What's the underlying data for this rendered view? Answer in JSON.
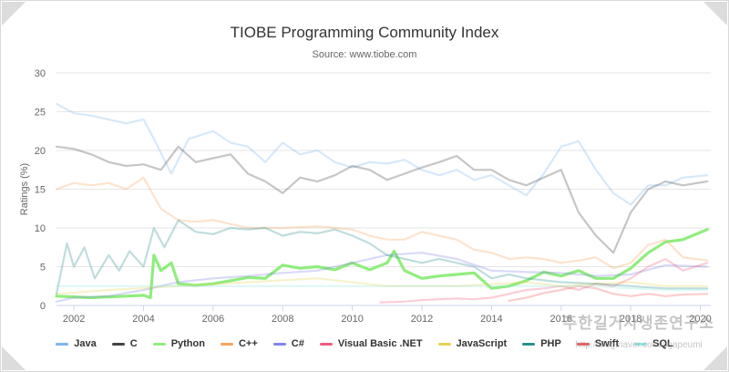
{
  "chart_data": {
    "type": "line",
    "title": "TIOBE Programming Community Index",
    "subtitle": "Source: www.tiobe.com",
    "xlabel": "",
    "ylabel": "Ratings (%)",
    "xlim": [
      2001.5,
      2020.3
    ],
    "ylim": [
      0,
      30
    ],
    "x_ticks": [
      2002,
      2004,
      2006,
      2008,
      2010,
      2012,
      2014,
      2016,
      2018,
      2020
    ],
    "y_ticks": [
      0,
      5,
      10,
      15,
      20,
      25,
      30
    ],
    "grid": "horizontal",
    "legend_position": "bottom",
    "series": [
      {
        "name": "Java",
        "color": "#7cb5ec",
        "emphasis": false,
        "x": [
          2001.5,
          2002,
          2002.5,
          2003,
          2003.5,
          2004,
          2004.3,
          2004.8,
          2005.3,
          2006,
          2006.5,
          2007,
          2007.5,
          2008,
          2008.5,
          2009,
          2009.5,
          2010,
          2010.5,
          2011,
          2011.5,
          2012,
          2012.5,
          2013,
          2013.5,
          2014,
          2014.5,
          2015,
          2015.5,
          2016,
          2016.5,
          2017,
          2017.5,
          2018,
          2018.5,
          2019,
          2019.5,
          2020.2
        ],
        "y": [
          26,
          24.8,
          24.5,
          24,
          23.5,
          24,
          21.5,
          17,
          21.5,
          22.5,
          21,
          20.5,
          18.5,
          21,
          19.5,
          20,
          18.5,
          17.8,
          18.5,
          18.3,
          18.8,
          17.5,
          16.8,
          17.5,
          16.2,
          16.8,
          15.5,
          14.2,
          17,
          20.5,
          21.2,
          17.5,
          14.5,
          13,
          15.5,
          15.5,
          16.5,
          16.8
        ]
      },
      {
        "name": "C",
        "color": "#434348",
        "emphasis": false,
        "x": [
          2001.5,
          2002,
          2002.5,
          2003,
          2003.5,
          2004,
          2004.5,
          2005,
          2005.5,
          2006,
          2006.5,
          2007,
          2007.5,
          2008,
          2008.5,
          2009,
          2009.5,
          2010,
          2010.5,
          2011,
          2011.5,
          2012,
          2012.5,
          2013,
          2013.5,
          2014,
          2014.5,
          2015,
          2015.5,
          2016,
          2016.5,
          2017,
          2017.5,
          2018,
          2018.5,
          2019,
          2019.5,
          2020.2
        ],
        "y": [
          20.5,
          20.2,
          19.5,
          18.5,
          18,
          18.2,
          17.5,
          20.5,
          18.5,
          19,
          19.5,
          17,
          16,
          14.5,
          16.5,
          16,
          16.8,
          18,
          17.5,
          16.2,
          17,
          17.8,
          18.5,
          19.3,
          17.5,
          17.5,
          16.2,
          15.5,
          16.5,
          17.5,
          12,
          9,
          6.8,
          12,
          15,
          16,
          15.5,
          16
        ]
      },
      {
        "name": "Python",
        "color": "#90ed7d",
        "emphasis": true,
        "x": [
          2001.5,
          2002,
          2002.5,
          2003,
          2003.5,
          2004,
          2004.2,
          2004.3,
          2004.5,
          2004.8,
          2005,
          2005.5,
          2006,
          2006.5,
          2007,
          2007.5,
          2008,
          2008.5,
          2009,
          2009.5,
          2010,
          2010.5,
          2011,
          2011.2,
          2011.5,
          2012,
          2012.5,
          2013,
          2013.5,
          2014,
          2014.5,
          2015,
          2015.5,
          2016,
          2016.5,
          2017,
          2017.5,
          2018,
          2018.5,
          2019,
          2019.5,
          2020.2
        ],
        "y": [
          1.2,
          1.1,
          1.0,
          1.1,
          1.2,
          1.3,
          1.0,
          6.5,
          4.5,
          5.5,
          2.8,
          2.6,
          2.8,
          3.2,
          3.6,
          3.5,
          5.2,
          4.8,
          5.0,
          4.6,
          5.5,
          4.6,
          5.5,
          7.0,
          4.5,
          3.5,
          3.8,
          4.0,
          4.2,
          2.2,
          2.5,
          3.2,
          4.3,
          3.8,
          4.5,
          3.5,
          3.5,
          4.8,
          6.8,
          8.2,
          8.5,
          9.8
        ]
      },
      {
        "name": "C++",
        "color": "#f7a35c",
        "emphasis": false,
        "x": [
          2001.5,
          2002,
          2002.5,
          2003,
          2003.5,
          2004,
          2004.5,
          2005,
          2005.5,
          2006,
          2006.5,
          2007,
          2008,
          2009,
          2010,
          2010.5,
          2011,
          2011.5,
          2012,
          2012.5,
          2013,
          2013.5,
          2014,
          2014.5,
          2015,
          2015.5,
          2016,
          2016.5,
          2017,
          2017.5,
          2018,
          2018.5,
          2019,
          2019.5,
          2020.2
        ],
        "y": [
          15,
          15.8,
          15.5,
          15.8,
          15,
          16.5,
          12.5,
          11,
          10.8,
          11,
          10.5,
          10,
          10,
          10.2,
          9.8,
          9,
          8.5,
          8.5,
          9.5,
          9,
          8.5,
          7.2,
          6.8,
          6,
          6.2,
          6,
          5.5,
          5.8,
          6.2,
          4.8,
          5.5,
          7.8,
          8.5,
          6.2,
          5.8
        ]
      },
      {
        "name": "C#",
        "color": "#8085e9",
        "emphasis": false,
        "x": [
          2001.5,
          2002,
          2003,
          2004,
          2005,
          2006,
          2007,
          2008,
          2009,
          2010,
          2011,
          2012,
          2013,
          2014,
          2015,
          2016,
          2017,
          2018,
          2019,
          2020.2
        ],
        "y": [
          0.5,
          1,
          1.2,
          2,
          3,
          3.5,
          3.8,
          4.2,
          4.5,
          5.5,
          6.5,
          6.8,
          6,
          4.5,
          4.3,
          4.2,
          3.8,
          4,
          5.2,
          5
        ]
      },
      {
        "name": "Visual Basic .NET",
        "color": "#f15c80",
        "emphasis": false,
        "x": [
          2010.8,
          2011.5,
          2012,
          2012.5,
          2013,
          2013.5,
          2014,
          2014.5,
          2015,
          2015.5,
          2016,
          2016.5,
          2017,
          2017.5,
          2018,
          2018.5,
          2019,
          2019.5,
          2020.2
        ],
        "y": [
          0.4,
          0.5,
          0.7,
          0.8,
          0.9,
          0.8,
          1.0,
          1.5,
          2.0,
          2.2,
          2.5,
          2.0,
          2.8,
          2.5,
          3.5,
          5.0,
          6.0,
          4.5,
          5.5
        ]
      },
      {
        "name": "JavaScript",
        "color": "#e4d354",
        "emphasis": false,
        "x": [
          2001.5,
          2003,
          2005,
          2007,
          2009,
          2011,
          2013,
          2015,
          2016,
          2017,
          2018,
          2019,
          2020.2
        ],
        "y": [
          1.5,
          2,
          2.5,
          3,
          3.5,
          2.5,
          2.5,
          3,
          2.5,
          2.8,
          3,
          2.5,
          2.5
        ]
      },
      {
        "name": "PHP",
        "color": "#2b908f",
        "emphasis": false,
        "x": [
          2001.5,
          2001.8,
          2002,
          2002.3,
          2002.6,
          2003,
          2003.3,
          2003.6,
          2004,
          2004.3,
          2004.6,
          2005,
          2005.5,
          2006,
          2006.5,
          2007,
          2007.5,
          2008,
          2008.5,
          2009,
          2009.5,
          2010,
          2010.5,
          2011,
          2011.5,
          2012,
          2012.5,
          2013,
          2013.5,
          2014,
          2014.5,
          2015,
          2016,
          2017,
          2018,
          2019,
          2020.2
        ],
        "y": [
          1.5,
          8,
          5,
          7.5,
          3.5,
          6.5,
          4.5,
          7,
          5,
          10,
          7.5,
          11,
          9.5,
          9.2,
          10,
          9.8,
          10,
          9,
          9.5,
          9.3,
          9.8,
          9,
          8,
          6.5,
          6,
          5.5,
          6,
          5.5,
          5,
          3.5,
          4,
          3.5,
          3,
          2.8,
          2.5,
          2.2,
          2.2
        ]
      },
      {
        "name": "Swift",
        "color": "#f45b5b",
        "emphasis": false,
        "x": [
          2014.5,
          2015,
          2015.5,
          2016,
          2016.5,
          2017,
          2017.5,
          2018,
          2018.5,
          2019,
          2019.5,
          2020.2
        ],
        "y": [
          0.6,
          1.0,
          1.6,
          2.0,
          2.5,
          2.2,
          1.5,
          1.2,
          1.5,
          1.2,
          1.4,
          1.5
        ]
      },
      {
        "name": "SQL",
        "color": "#91e8e1",
        "emphasis": false,
        "x": [
          2001.5,
          2003,
          2005,
          2007,
          2009,
          2011,
          2013,
          2015,
          2017,
          2018,
          2019,
          2020.2
        ],
        "y": [
          2.5,
          2.5,
          2.5,
          2.5,
          2.5,
          2.5,
          2.5,
          2.5,
          2.5,
          2.2,
          2,
          2
        ]
      }
    ]
  },
  "watermark": {
    "line1": "주한길거사생존연구소",
    "line2": "http://blog.naver.com/ogapeumi"
  }
}
